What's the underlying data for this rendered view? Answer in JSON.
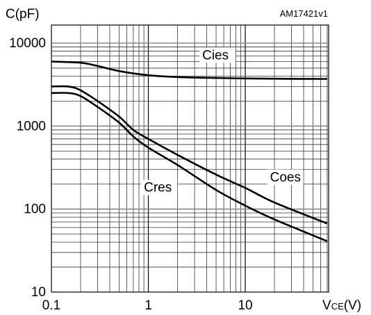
{
  "chart_data": {
    "type": "line",
    "id_label": "AM17421v1",
    "ylabel": "C(pF)",
    "xlabel_main": "V",
    "xlabel_sub": "CE",
    "xlabel_unit": "(V)",
    "xscale": "log",
    "yscale": "log",
    "xlim": [
      0.1,
      70
    ],
    "ylim": [
      10,
      10000
    ],
    "grid": true,
    "x_ticks": [
      {
        "value": 0.1,
        "label": "0.1"
      },
      {
        "value": 1,
        "label": "1"
      },
      {
        "value": 10,
        "label": "10"
      }
    ],
    "y_ticks": [
      {
        "value": 10,
        "label": "10"
      },
      {
        "value": 100,
        "label": "100"
      },
      {
        "value": 1000,
        "label": "1000"
      },
      {
        "value": 10000,
        "label": "10000"
      }
    ],
    "series": [
      {
        "name": "Cies",
        "label_at": {
          "x": 3.6,
          "y": 6500
        },
        "x": [
          0.1,
          0.2,
          0.3,
          0.5,
          1,
          2,
          5,
          10,
          20,
          70
        ],
        "y": [
          6000,
          5800,
          5300,
          4600,
          4100,
          3900,
          3800,
          3750,
          3720,
          3700
        ]
      },
      {
        "name": "Coes",
        "label_at": {
          "x": 18,
          "y": 220
        },
        "x": [
          0.1,
          0.15,
          0.2,
          0.3,
          0.5,
          0.7,
          1,
          2,
          5,
          10,
          20,
          70
        ],
        "y": [
          3000,
          3000,
          2700,
          2000,
          1300,
          900,
          700,
          450,
          260,
          180,
          120,
          67
        ]
      },
      {
        "name": "Cres",
        "label_at": {
          "x": 0.9,
          "y": 165
        },
        "x": [
          0.1,
          0.15,
          0.2,
          0.3,
          0.5,
          0.7,
          1,
          2,
          5,
          10,
          20,
          70
        ],
        "y": [
          2500,
          2500,
          2300,
          1700,
          1100,
          750,
          550,
          340,
          170,
          110,
          75,
          41
        ]
      }
    ]
  }
}
